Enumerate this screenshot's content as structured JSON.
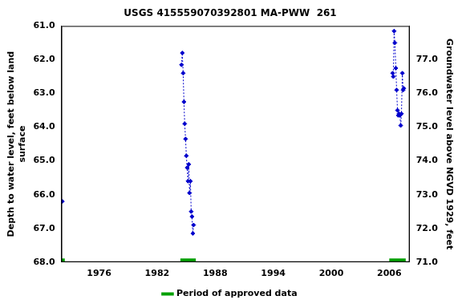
{
  "chart_data": {
    "type": "scatter",
    "title": "USGS 415559070392801 MA-PWW  261",
    "y_label": [
      "Depth to water level, feet below land",
      "surface"
    ],
    "y2_label": "Groundwater level above NGVD 1929, feet",
    "xlim": [
      1972.1,
      2008.1
    ],
    "xticks": [
      1976,
      1982,
      1988,
      1994,
      2000,
      2006
    ],
    "ylim": [
      68,
      61
    ],
    "yticks": [
      {
        "value": 61,
        "label": "61.0"
      },
      {
        "value": 62,
        "label": "62.0"
      },
      {
        "value": 63,
        "label": "63.0"
      },
      {
        "value": 64,
        "label": "64.0"
      },
      {
        "value": 65,
        "label": "65.0"
      },
      {
        "value": 66,
        "label": "66.0"
      },
      {
        "value": 67,
        "label": "67.0"
      },
      {
        "value": 68,
        "label": "68.0"
      }
    ],
    "y2lim": [
      71,
      78
    ],
    "y2ticks": [
      {
        "value": 71,
        "label": "71.0"
      },
      {
        "value": 72,
        "label": "72.0"
      },
      {
        "value": 73,
        "label": "73.0"
      },
      {
        "value": 74,
        "label": "74.0"
      },
      {
        "value": 75,
        "label": "75.0"
      },
      {
        "value": 76,
        "label": "76.0"
      },
      {
        "value": 77,
        "label": "77.0"
      }
    ],
    "grid": false,
    "legend": "bottom",
    "series": [
      {
        "color": "#0000cc",
        "marker": "diamond",
        "line_style": "dotted",
        "x": [
          1972.2,
          1978,
          1984.52,
          1984.6,
          1984.69,
          1984.77,
          1984.85,
          1984.94,
          1985.02,
          1985.1,
          1985.19,
          1985.27,
          1985.35,
          1985.44,
          1985.52,
          1985.6,
          1985.69,
          1985.77,
          1996,
          2006.35,
          2006.42,
          2006.5,
          2006.58,
          2006.68,
          2006.76,
          2006.85,
          2006.93,
          2007.0,
          2007.1,
          2007.18,
          2007.26,
          2007.35,
          2007.43,
          2007.5
        ],
        "values": [
          66.2,
          null,
          62.15,
          61.8,
          62.4,
          63.25,
          63.9,
          64.35,
          64.85,
          65.2,
          65.6,
          65.1,
          65.95,
          65.6,
          66.5,
          66.65,
          67.15,
          66.9,
          null,
          62.4,
          62.5,
          61.15,
          61.5,
          62.25,
          62.9,
          63.5,
          63.65,
          63.6,
          63.65,
          63.95,
          63.6,
          62.4,
          62.9,
          62.85
        ]
      },
      {
        "name": "Period of approved data",
        "color": "#00a000",
        "line_style": "solid",
        "x": [
          1972.1,
          1972.45,
          1978,
          1984.4,
          1986.0,
          1996,
          2006.0,
          2007.7
        ],
        "values": [
          67.95,
          67.95,
          null,
          67.95,
          67.95,
          null,
          67.95,
          67.95
        ]
      }
    ]
  }
}
